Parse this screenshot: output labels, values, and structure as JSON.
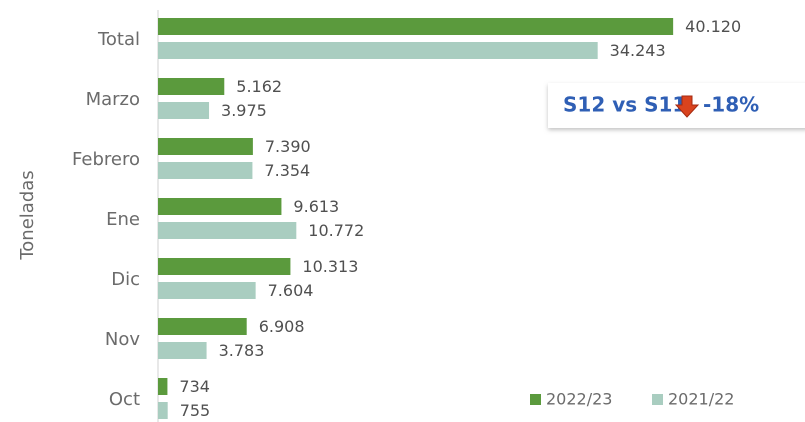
{
  "chart_data": {
    "type": "hbar",
    "y_label": "Toneladas",
    "categories": [
      "Total",
      "Marzo",
      "Febrero",
      "Ene",
      "Dic",
      "Nov",
      "Oct"
    ],
    "series": [
      {
        "name": "2022/23",
        "color": "#5b9a3d",
        "values": [
          40120,
          5162,
          7390,
          9613,
          10313,
          6908,
          734
        ],
        "value_labels": [
          "40.120",
          "5.162",
          "7.390",
          "9.613",
          "10.313",
          "6.908",
          "734"
        ]
      },
      {
        "name": "2021/22",
        "color": "#a9cdc0",
        "values": [
          34243,
          3975,
          7354,
          10772,
          7604,
          3783,
          755
        ],
        "value_labels": [
          "34.243",
          "3.975",
          "7.354",
          "10.772",
          "7.604",
          "3.783",
          "755"
        ]
      }
    ],
    "xlim": [
      0,
      50000
    ],
    "legend": "bottom-right",
    "annotation": {
      "text": "S12 vs S11",
      "change": "-18%"
    }
  }
}
